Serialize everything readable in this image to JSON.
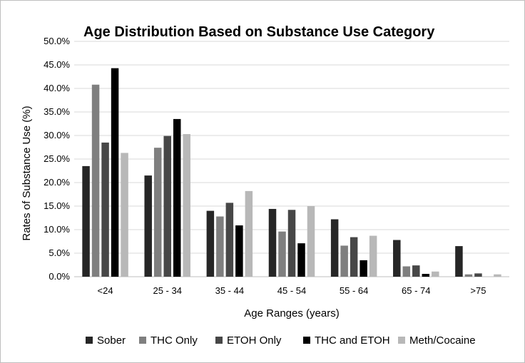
{
  "chart_data": {
    "type": "bar",
    "title": "Age Distribution Based on Substance Use Category",
    "xlabel": "Age Ranges (years)",
    "ylabel": "Rates of Substance Use (%)",
    "ylim": [
      0,
      50
    ],
    "yticks": [
      "0.0%",
      "5.0%",
      "10.0%",
      "15.0%",
      "20.0%",
      "25.0%",
      "30.0%",
      "35.0%",
      "40.0%",
      "45.0%",
      "50.0%"
    ],
    "grid": true,
    "legend_position": "bottom",
    "categories": [
      "<24",
      "25 - 34",
      "35 - 44",
      "45 - 54",
      "55 - 64",
      "65 - 74",
      ">75"
    ],
    "series": [
      {
        "name": "Sober",
        "color": "#262626",
        "values": [
          23.5,
          21.5,
          14.0,
          14.4,
          12.2,
          7.8,
          6.5
        ]
      },
      {
        "name": "THC Only",
        "color": "#7f7f7f",
        "values": [
          40.8,
          27.4,
          12.8,
          9.6,
          6.6,
          2.2,
          0.5
        ]
      },
      {
        "name": "ETOH Only",
        "color": "#474747",
        "values": [
          28.5,
          29.9,
          15.7,
          14.2,
          8.4,
          2.4,
          0.7
        ]
      },
      {
        "name": "THC and ETOH",
        "color": "#000000",
        "values": [
          44.3,
          33.5,
          10.9,
          7.1,
          3.5,
          0.6,
          0.0
        ]
      },
      {
        "name": "Meth/Cocaine",
        "color": "#b8b8b8",
        "values": [
          26.3,
          30.3,
          18.2,
          15.0,
          8.7,
          1.1,
          0.5
        ]
      }
    ]
  }
}
